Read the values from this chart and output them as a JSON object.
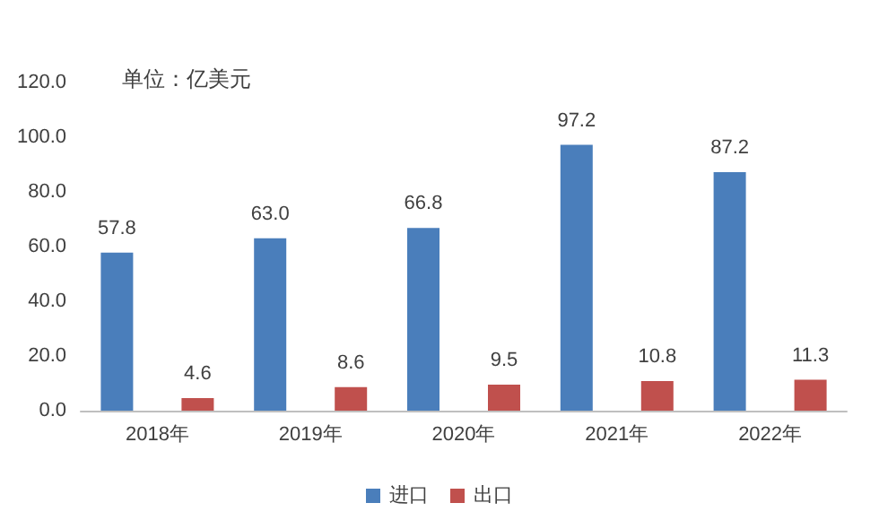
{
  "chart_data": {
    "type": "bar",
    "categories": [
      "2018年",
      "2019年",
      "2020年",
      "2021年",
      "2022年"
    ],
    "series": [
      {
        "name": "进口",
        "color": "#4a7ebb",
        "values": [
          57.8,
          63.0,
          66.8,
          97.2,
          87.2
        ],
        "value_labels": [
          "57.8",
          "63.0",
          "66.8",
          "97.2",
          "87.2"
        ]
      },
      {
        "name": "出口",
        "color": "#c0504d",
        "values": [
          4.6,
          8.6,
          9.5,
          10.8,
          11.3
        ],
        "value_labels": [
          "4.6",
          "8.6",
          "9.5",
          "10.8",
          "11.3"
        ]
      }
    ],
    "ylim": [
      0,
      120
    ],
    "yticks": [
      {
        "value": 0,
        "label": "0.0"
      },
      {
        "value": 20,
        "label": "20.0"
      },
      {
        "value": 40,
        "label": "40.0"
      },
      {
        "value": 60,
        "label": "60.0"
      },
      {
        "value": 80,
        "label": "80.0"
      },
      {
        "value": 100,
        "label": "100.0"
      },
      {
        "value": 120,
        "label": "120.0"
      }
    ],
    "annotations": [
      "单位：亿美元"
    ],
    "grid": false,
    "legend": "bottom"
  }
}
